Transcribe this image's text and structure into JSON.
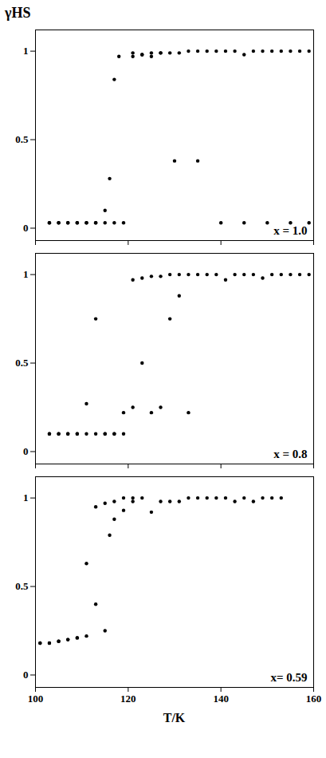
{
  "chart_data": [
    {
      "type": "scatter",
      "ylabel": "γHS",
      "annotation": "x = 1.0",
      "xlim": [
        100,
        160
      ],
      "xticks": [
        100,
        120,
        140,
        160
      ],
      "ylim": [
        -0.07,
        1.12
      ],
      "yticks": [
        0,
        0.5,
        1
      ],
      "grid": false,
      "tick_labels": "y",
      "series": [
        {
          "color": "#000000",
          "x": [
            103,
            105,
            107,
            109,
            111,
            113,
            115,
            117,
            119,
            121,
            123,
            125,
            127,
            129,
            131,
            133,
            135,
            137,
            139,
            141,
            143,
            145,
            147,
            149,
            151,
            153,
            155,
            157,
            159
          ],
          "values": [
            0.03,
            0.03,
            0.03,
            0.03,
            0.03,
            0.03,
            0.03,
            0.03,
            0.03,
            0.97,
            0.98,
            0.99,
            0.99,
            0.99,
            0.99,
            1.0,
            1.0,
            1.0,
            1.0,
            1.0,
            1.0,
            0.98,
            1.0,
            1.0,
            1.0,
            1.0,
            1.0,
            1.0,
            1.0
          ]
        },
        {
          "color": "#000000",
          "x": [
            103,
            105,
            107,
            109,
            111,
            113,
            115,
            116,
            117,
            118,
            121,
            123,
            125,
            127,
            130,
            135,
            140,
            145,
            150,
            155,
            159
          ],
          "values": [
            0.03,
            0.03,
            0.03,
            0.03,
            0.03,
            0.03,
            0.1,
            0.28,
            0.84,
            0.97,
            0.99,
            0.98,
            0.97,
            0.99,
            0.38,
            0.38,
            0.03,
            0.03,
            0.03,
            0.03,
            0.03
          ]
        }
      ]
    },
    {
      "type": "scatter",
      "annotation": "x = 0.8",
      "xlim": [
        100,
        160
      ],
      "xticks": [
        100,
        120,
        140,
        160
      ],
      "ylim": [
        -0.07,
        1.12
      ],
      "yticks": [
        0,
        0.5,
        1
      ],
      "grid": false,
      "tick_labels": "y",
      "series": [
        {
          "color": "#000000",
          "x": [
            103,
            105,
            107,
            109,
            111,
            113,
            115,
            117,
            119,
            121,
            123,
            125,
            127,
            129,
            131,
            133,
            135,
            137,
            139,
            141,
            143,
            145,
            147,
            149,
            151,
            153,
            155,
            157,
            159
          ],
          "values": [
            0.1,
            0.1,
            0.1,
            0.1,
            0.1,
            0.1,
            0.1,
            0.1,
            0.1,
            0.97,
            0.98,
            0.99,
            0.99,
            1.0,
            1.0,
            1.0,
            1.0,
            1.0,
            1.0,
            0.97,
            1.0,
            1.0,
            1.0,
            0.98,
            1.0,
            1.0,
            1.0,
            1.0,
            1.0
          ]
        },
        {
          "color": "#000000",
          "x": [
            103,
            105,
            107,
            109,
            111,
            113,
            115,
            117,
            119,
            121,
            123,
            125,
            127,
            129,
            131,
            133
          ],
          "values": [
            0.1,
            0.1,
            0.1,
            0.1,
            0.27,
            0.75,
            0.1,
            0.1,
            0.22,
            0.25,
            0.5,
            0.22,
            0.25,
            0.75,
            0.88,
            0.22
          ]
        }
      ]
    },
    {
      "type": "scatter",
      "xlabel": "T/K",
      "annotation": "x= 0.59",
      "xlim": [
        100,
        160
      ],
      "xticks": [
        100,
        120,
        140,
        160
      ],
      "ylim": [
        -0.07,
        1.12
      ],
      "yticks": [
        0,
        0.5,
        1
      ],
      "grid": false,
      "series": [
        {
          "color": "#000000",
          "x": [
            101,
            103,
            105,
            107,
            109,
            111,
            113,
            115,
            117,
            119,
            121,
            123,
            125,
            127,
            129,
            131,
            133,
            135,
            137,
            139,
            141,
            143,
            145,
            147,
            149,
            151,
            153
          ],
          "values": [
            0.18,
            0.18,
            0.19,
            0.2,
            0.21,
            0.22,
            0.95,
            0.97,
            0.98,
            1.0,
            1.0,
            1.0,
            0.92,
            0.98,
            0.98,
            0.98,
            1.0,
            1.0,
            1.0,
            1.0,
            1.0,
            0.98,
            1.0,
            0.98,
            1.0,
            1.0,
            1.0
          ]
        },
        {
          "color": "#000000",
          "x": [
            101,
            103,
            105,
            107,
            109,
            111,
            113,
            115,
            116,
            117,
            119,
            121
          ],
          "values": [
            0.18,
            0.18,
            0.19,
            0.2,
            0.21,
            0.63,
            0.4,
            0.25,
            0.79,
            0.88,
            0.93,
            0.98
          ]
        }
      ]
    }
  ]
}
